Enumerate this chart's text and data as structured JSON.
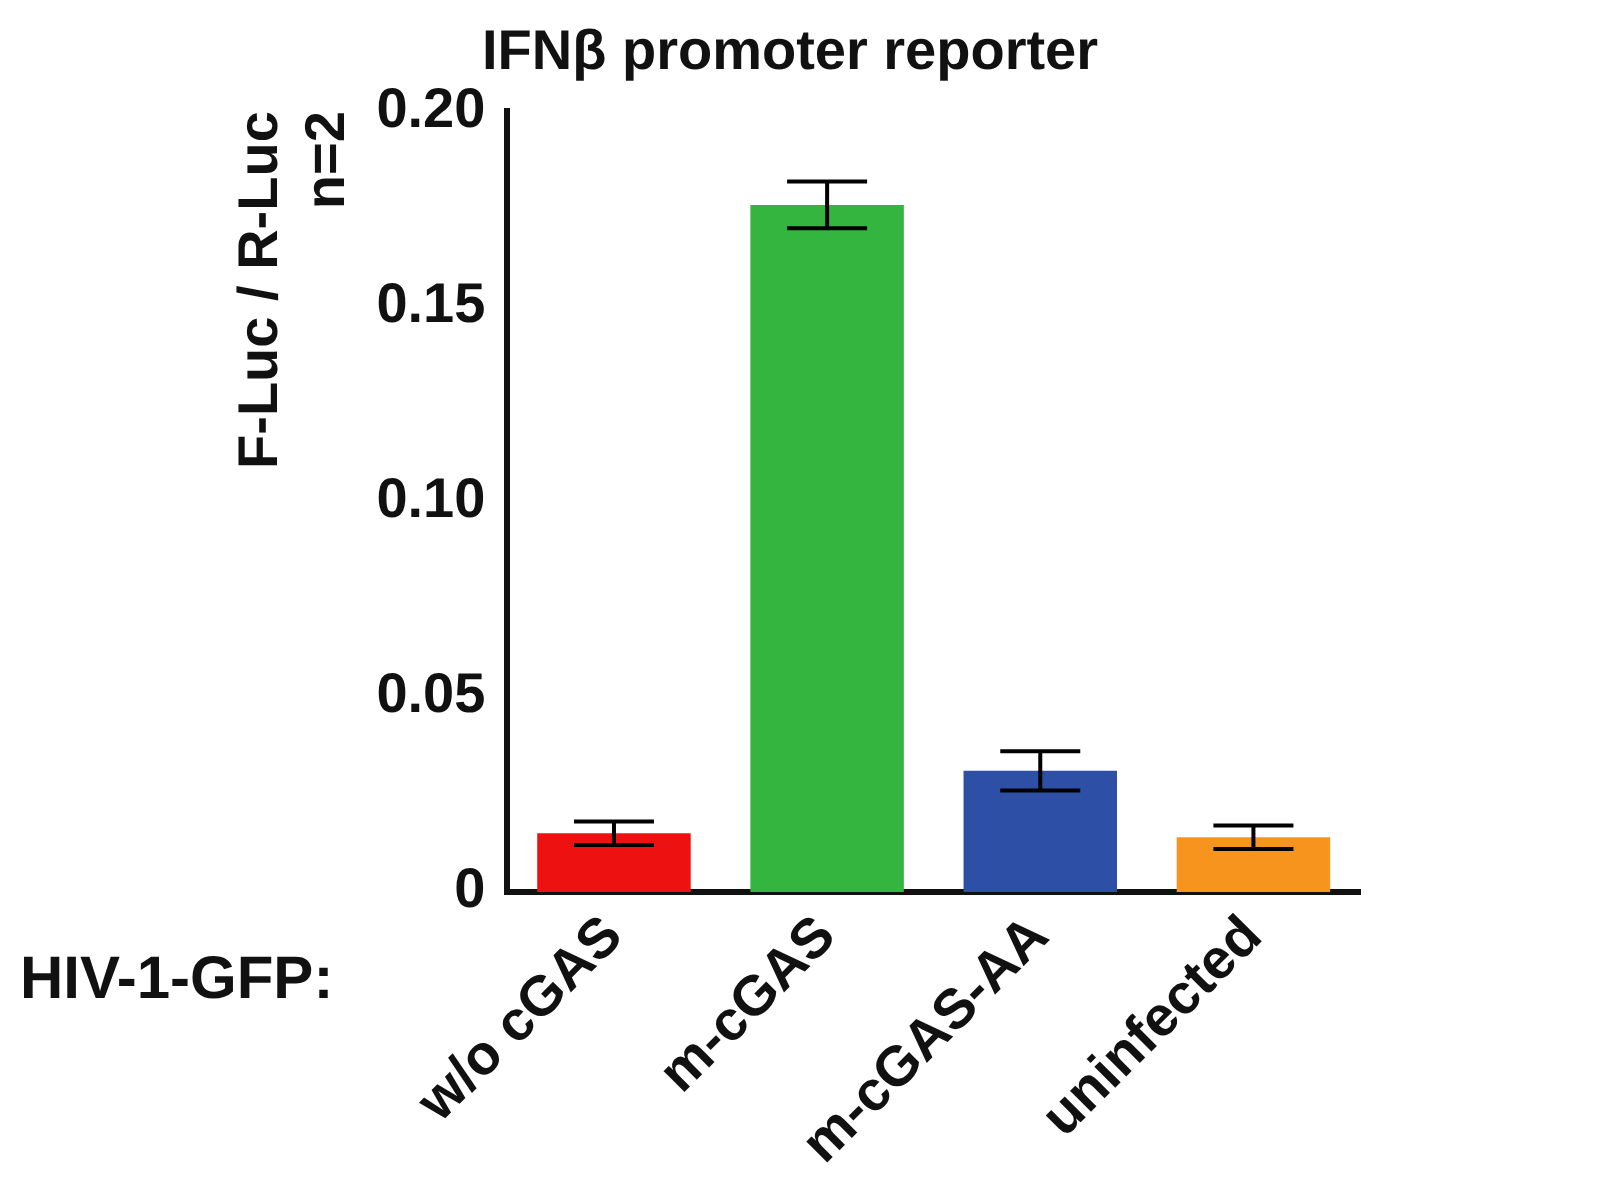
{
  "chart_data": {
    "type": "bar",
    "title": "IFNβ promoter reporter",
    "ylabel": "F-Luc / R-Luc\nn=2",
    "categories": [
      "w/o cGAS",
      "m-cGAS",
      "m-cGAS-AA",
      "uninfected"
    ],
    "values": [
      0.015,
      0.176,
      0.031,
      0.014
    ],
    "errors": [
      0.003,
      0.006,
      0.005,
      0.003
    ],
    "colors": [
      "#ee1111",
      "#33b540",
      "#2e4fa6",
      "#f7941d"
    ],
    "ylim": [
      0,
      0.2
    ],
    "yticks": [
      {
        "value": 0,
        "label": "0"
      },
      {
        "value": 0.05,
        "label": "0.05"
      },
      {
        "value": 0.1,
        "label": "0.10"
      },
      {
        "value": 0.15,
        "label": "0.15"
      },
      {
        "value": 0.2,
        "label": "0.20"
      }
    ],
    "grid": false,
    "legend": false,
    "annotations": [
      "HIV-1-GFP:"
    ]
  }
}
